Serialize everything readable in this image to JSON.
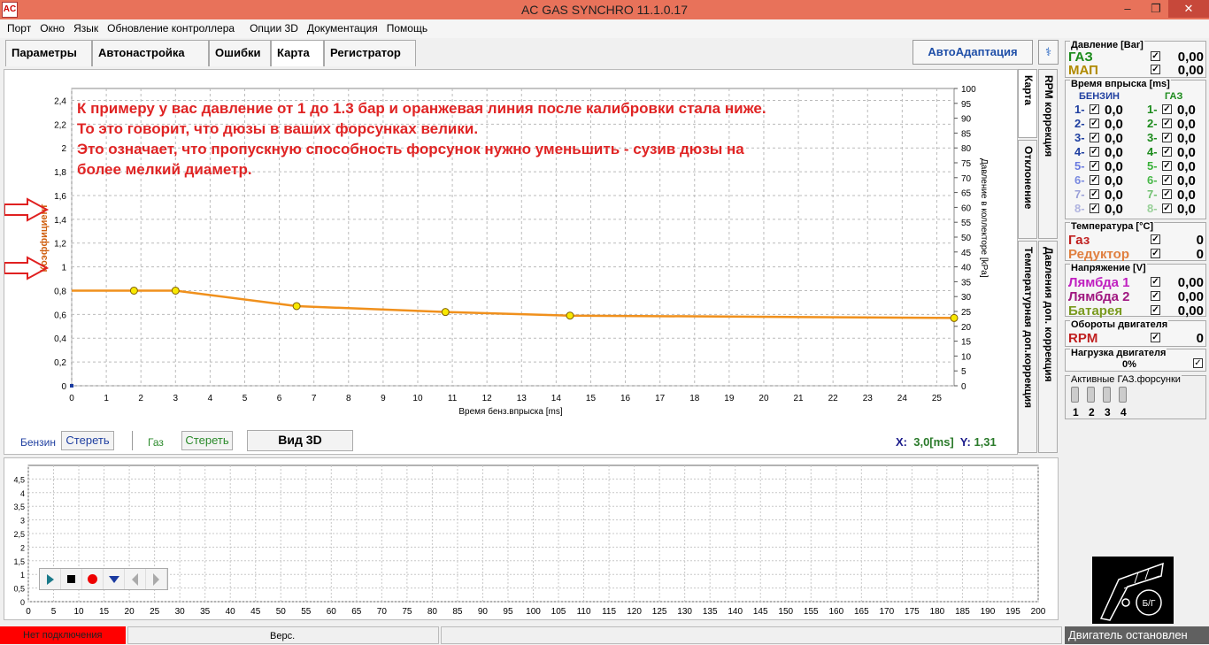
{
  "window": {
    "title": "AC GAS SYNCHRO  11.1.0.17",
    "icon": "app-icon",
    "minimize": "–",
    "maximize": "❐",
    "close": "✕"
  },
  "menu": [
    "Порт",
    "Окно",
    "Язык",
    "Обновление контроллера",
    "Опции 3D",
    "Документация",
    "Помощь"
  ],
  "tabs": [
    "Параметры",
    "Автонастройка",
    "Ошибки",
    "Карта",
    "Регистратор"
  ],
  "autoadapt": "АвтоАдаптация",
  "wrench": "wrench-icon",
  "side_tabs": [
    "Карта",
    "RPM коррекция",
    "Отклонение",
    "Температурная доп.коррекция",
    "Давления доп. коррекция"
  ],
  "annotation": [
    "К примеру у вас давление от 1 до 1.3 бар и оранжевая линия после калибровки стала ниже.",
    "То это говорит, что дюзы в ваших форсунках велики.",
    "Это означает, что пропускную способность форсунок нужно уменьшить - сузив дюзы на",
    "более мелкий диаметр."
  ],
  "controls": {
    "benzin": "Бензин",
    "gaz": "Газ",
    "clear1": "Стереть",
    "clear2": "Стереть",
    "view3d": "Вид 3D",
    "x_label": "X:",
    "x_value": "3,0[ms]",
    "y_label": "Y:",
    "y_value": "1,31"
  },
  "chart_data": [
    {
      "type": "line",
      "xlabel": "Время бенз.впрыска [ms]",
      "ylabel": "Коэффициент",
      "y2label": "Давление в коллекторе [kPa]",
      "xlim": [
        0,
        25.5
      ],
      "ylim": [
        0,
        2.5
      ],
      "y2lim": [
        0,
        100
      ],
      "grid": true,
      "x_ticks": [
        "0",
        "1",
        "2",
        "3",
        "4",
        "5",
        "6",
        "7",
        "8",
        "9",
        "10",
        "11",
        "12",
        "13",
        "14",
        "15",
        "16",
        "17",
        "18",
        "19",
        "20",
        "21",
        "22",
        "23",
        "24",
        "25"
      ],
      "y_ticks": [
        "0",
        "0,2",
        "0,4",
        "0,6",
        "0,8",
        "1",
        "1,2",
        "1,4",
        "1,6",
        "1,8",
        "2",
        "2,2",
        "2,4"
      ],
      "y2_ticks": [
        "0",
        "5",
        "10",
        "15",
        "20",
        "25",
        "30",
        "35",
        "40",
        "45",
        "50",
        "55",
        "60",
        "65",
        "70",
        "75",
        "80",
        "85",
        "90",
        "95",
        "100"
      ],
      "series": [
        {
          "color": "#f0901c",
          "x": [
            0,
            1.8,
            3.0,
            6.5,
            10.8,
            14.4,
            25.5
          ],
          "y": [
            0.8,
            0.8,
            0.8,
            0.67,
            0.62,
            0.59,
            0.57
          ],
          "markers": [
            1.8,
            3.0,
            6.5,
            10.8,
            14.4,
            25.5
          ]
        }
      ]
    },
    {
      "type": "line",
      "xlim": [
        0,
        200
      ],
      "ylim": [
        0,
        5
      ],
      "grid": true,
      "x_ticks": [
        "0",
        "5",
        "10",
        "15",
        "20",
        "25",
        "30",
        "35",
        "40",
        "45",
        "50",
        "55",
        "60",
        "65",
        "70",
        "75",
        "80",
        "85",
        "90",
        "95",
        "100",
        "105",
        "110",
        "115",
        "120",
        "125",
        "130",
        "135",
        "140",
        "145",
        "150",
        "155",
        "160",
        "165",
        "170",
        "175",
        "180",
        "185",
        "190",
        "195",
        "200"
      ],
      "y_ticks": [
        "0",
        "0,5",
        "1",
        "1,5",
        "2",
        "2,5",
        "3",
        "3,5",
        "4",
        "4,5"
      ]
    }
  ],
  "right": {
    "pressure": {
      "title": "Давление [Bar]",
      "rows": [
        {
          "name": "ГАЗ",
          "value": "0,00",
          "color": "#1a8a1a"
        },
        {
          "name": "МАП",
          "value": "0,00",
          "color": "#b08a00"
        }
      ]
    },
    "inj": {
      "title": "Время впрыска [ms]",
      "benzin": "БЕНЗИН",
      "gaz": "ГАЗ",
      "rows": [
        {
          "n": "1-",
          "b": "0,0",
          "g": "0,0"
        },
        {
          "n": "2-",
          "b": "0,0",
          "g": "0,0"
        },
        {
          "n": "3-",
          "b": "0,0",
          "g": "0,0"
        },
        {
          "n": "4-",
          "b": "0,0",
          "g": "0,0"
        },
        {
          "n": "5-",
          "b": "0,0",
          "g": "0,0"
        },
        {
          "n": "6-",
          "b": "0,0",
          "g": "0,0"
        },
        {
          "n": "7-",
          "b": "0,0",
          "g": "0,0"
        },
        {
          "n": "8-",
          "b": "0,0",
          "g": "0,0"
        }
      ]
    },
    "temp": {
      "title": "Температура  [°C]",
      "rows": [
        {
          "name": "Газ",
          "value": "0",
          "color": "#c02020"
        },
        {
          "name": "Редуктор",
          "value": "0",
          "color": "#e08040"
        }
      ]
    },
    "volt": {
      "title": "Напряжение [V]",
      "rows": [
        {
          "name": "Лямбда 1",
          "value": "0,00",
          "color": "#c020c0"
        },
        {
          "name": "Лямбда 2",
          "value": "0,00",
          "color": "#a01880"
        },
        {
          "name": "Батарея",
          "value": "0,00",
          "color": "#7a9a20"
        }
      ]
    },
    "rpm": {
      "title": "Обороты двигателя",
      "name": "RPM",
      "value": "0"
    },
    "load": {
      "title": "Нагрузка двигателя",
      "value": "0%"
    },
    "active": {
      "title": "Активные ГАЗ.форсунки",
      "nums": [
        "1",
        "2",
        "3",
        "4"
      ]
    },
    "logo_text": "Б/Г"
  },
  "status": {
    "connection": "Нет подключения",
    "version": "Верс.",
    "engine": "Двигатель остановлен"
  }
}
